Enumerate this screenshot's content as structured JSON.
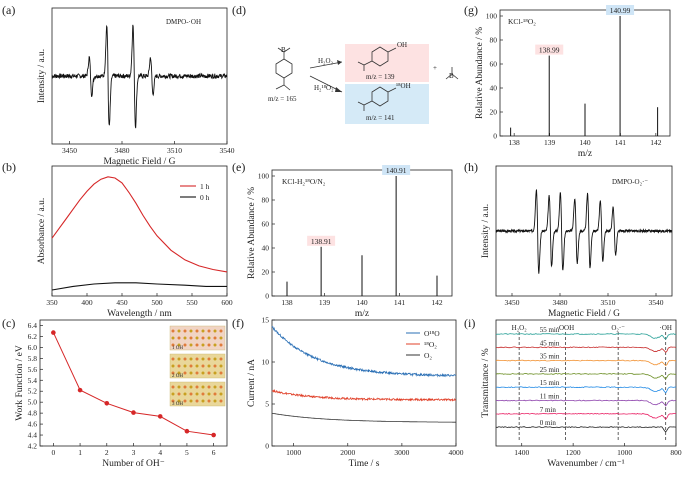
{
  "panels": {
    "a": {
      "tag": "(a)",
      "label": "DMPO-·OH"
    },
    "b": {
      "tag": "(b)"
    },
    "c": {
      "tag": "(c)"
    },
    "d": {
      "tag": "(d)"
    },
    "e": {
      "tag": "(e)",
      "label": "KCl-H₂¹⁸O/N₂"
    },
    "f": {
      "tag": "(f)"
    },
    "g": {
      "tag": "(g)",
      "label": "KCl-¹⁸O₂"
    },
    "h": {
      "tag": "(h)",
      "label": "DMPO-O₂·⁻"
    },
    "i": {
      "tag": "(i)"
    }
  },
  "scheme": {
    "reactant_mz": "m/z = 165",
    "reagent_top": "H₂O₂",
    "product_top_mz": "m/z = 139",
    "reagent_bottom": "H₂¹⁸O₂",
    "product_bottom_mz": "m/z = 141",
    "oh_label": "OH",
    "oh18_label": "¹⁸OH",
    "boron_label": "B",
    "plus_sign": "+"
  },
  "chart_data": [
    {
      "id": "a",
      "type": "line",
      "xlabel": "Magnetic Field / G",
      "ylabel": "Intensity / a.u.",
      "xlim": [
        3440,
        3540
      ],
      "xticks": [
        3450,
        3480,
        3510,
        3540
      ],
      "series": [
        {
          "name": "DMPO-·OH",
          "lines": [
            {
              "x": 3462,
              "a": 0.35,
              "w": 1.0
            },
            {
              "x": 3472,
              "a": 0.95,
              "w": 1.0
            },
            {
              "x": 3487,
              "a": 0.95,
              "w": 1.0
            },
            {
              "x": 3497,
              "a": 0.35,
              "w": 1.0
            }
          ]
        }
      ]
    },
    {
      "id": "b",
      "type": "line",
      "xlabel": "Wavelength / nm",
      "ylabel": "Absorbance / a.u.",
      "xlim": [
        350,
        600
      ],
      "xticks": [
        350,
        400,
        450,
        500,
        550,
        600
      ],
      "legend": "top-right",
      "series": [
        {
          "name": "1 h",
          "color": "#d62728",
          "x": [
            350,
            360,
            370,
            380,
            390,
            400,
            410,
            420,
            430,
            440,
            450,
            460,
            470,
            480,
            490,
            500,
            520,
            540,
            560,
            580,
            600
          ],
          "y": [
            0.48,
            0.56,
            0.64,
            0.72,
            0.8,
            0.87,
            0.93,
            0.97,
            0.99,
            0.98,
            0.94,
            0.86,
            0.77,
            0.67,
            0.58,
            0.5,
            0.38,
            0.3,
            0.25,
            0.22,
            0.2
          ]
        },
        {
          "name": "0 h",
          "color": "#111111",
          "x": [
            350,
            380,
            410,
            440,
            470,
            500,
            540,
            570,
            600
          ],
          "y": [
            0.05,
            0.08,
            0.1,
            0.11,
            0.11,
            0.1,
            0.09,
            0.08,
            0.08
          ]
        }
      ]
    },
    {
      "id": "c",
      "type": "line",
      "xlabel": "Number of OH⁻",
      "ylabel": "Work Function / eV",
      "xlim": [
        -0.5,
        6.5
      ],
      "ylim": [
        4.2,
        6.5
      ],
      "xticks": [
        0,
        1,
        2,
        3,
        4,
        5,
        6
      ],
      "yticks": [
        4.2,
        4.4,
        4.6,
        4.8,
        5.0,
        5.2,
        5.4,
        5.6,
        5.8,
        6.0,
        6.2,
        6.4
      ],
      "inset_labels": [
        "1 OH",
        "2 OH",
        "3 OH"
      ],
      "series": [
        {
          "name": "",
          "color": "#d62728",
          "x": [
            0,
            1,
            2,
            3,
            4,
            5,
            6
          ],
          "y": [
            6.27,
            5.22,
            4.98,
            4.81,
            4.74,
            4.47,
            4.4
          ]
        }
      ]
    },
    {
      "id": "e",
      "type": "bar",
      "xlabel": "m/z",
      "ylabel": "Relative Abundance / %",
      "xlim": [
        137.6,
        142.4
      ],
      "ylim": [
        0,
        105
      ],
      "xticks": [
        138,
        139,
        140,
        141,
        142
      ],
      "yticks": [
        0,
        20,
        40,
        60,
        80,
        100
      ],
      "x": [
        138.0,
        138.91,
        140.0,
        140.91,
        142.0
      ],
      "values": [
        12,
        41,
        34,
        100,
        17
      ],
      "labels": [
        {
          "text": "138.91",
          "x": 138.91,
          "bg": "#fde2e2"
        },
        {
          "text": "140.91",
          "x": 140.91,
          "bg": "#cfe5f6"
        }
      ]
    },
    {
      "id": "f",
      "type": "line",
      "xlabel": "Time / s",
      "ylabel": "Current / nA",
      "xlim": [
        600,
        4000
      ],
      "ylim": [
        0,
        15
      ],
      "xticks": [
        1000,
        2000,
        3000,
        4000
      ],
      "yticks": [
        0,
        5,
        10,
        15
      ],
      "legend": "top-right",
      "series": [
        {
          "name": "O¹⁸O",
          "color": "#2a6fb5",
          "start": 14.2,
          "end": 8.3,
          "tau": 800,
          "noise": 0.25
        },
        {
          "name": "¹⁸O₂",
          "color": "#e0412a",
          "start": 6.6,
          "end": 5.5,
          "tau": 700,
          "noise": 0.22
        },
        {
          "name": "O₂",
          "color": "#333333",
          "start": 3.9,
          "end": 2.8,
          "tau": 1000,
          "noise": 0.0
        }
      ]
    },
    {
      "id": "g",
      "type": "bar",
      "xlabel": "m/z",
      "ylabel": "Relative Abundance / %",
      "xlim": [
        137.6,
        142.4
      ],
      "ylim": [
        0,
        105
      ],
      "xticks": [
        138,
        139,
        140,
        141,
        142
      ],
      "yticks": [
        0,
        20,
        40,
        60,
        80,
        100
      ],
      "x": [
        137.9,
        138.99,
        140.0,
        140.99,
        142.05
      ],
      "values": [
        7,
        67,
        27,
        100,
        24
      ],
      "labels": [
        {
          "text": "138.99",
          "x": 138.99,
          "bg": "#fde2e2"
        },
        {
          "text": "140.99",
          "x": 140.99,
          "bg": "#cfe5f6"
        }
      ]
    },
    {
      "id": "h",
      "type": "line",
      "xlabel": "Magnetic Field / G",
      "ylabel": "Intensity / a.u.",
      "xlim": [
        3440,
        3550
      ],
      "xticks": [
        3450,
        3480,
        3510,
        3540
      ],
      "series": [
        {
          "name": "DMPO-O₂·⁻",
          "lines": [
            {
              "x": 3466,
              "a": 0.95,
              "w": 1.1
            },
            {
              "x": 3474,
              "a": 0.8,
              "w": 1.1
            },
            {
              "x": 3481,
              "a": 0.9,
              "w": 1.1
            },
            {
              "x": 3490,
              "a": 0.75,
              "w": 1.1
            },
            {
              "x": 3498,
              "a": 0.85,
              "w": 1.1
            },
            {
              "x": 3506,
              "a": 0.7,
              "w": 1.1
            },
            {
              "x": 3514,
              "a": 0.55,
              "w": 1.1
            }
          ]
        }
      ]
    },
    {
      "id": "i",
      "type": "line",
      "xlabel": "Wavenumber / cm⁻¹",
      "ylabel": "Transmittance / %",
      "xlim": [
        1500,
        800
      ],
      "xticks": [
        1400,
        1200,
        1000,
        800
      ],
      "markers": [
        {
          "label": "H₂O₂",
          "x": 1410
        },
        {
          "label": "·OOH",
          "x": 1230
        },
        {
          "label": "O₂·⁻",
          "x": 1025
        },
        {
          "label": "·OH",
          "x": 840
        }
      ],
      "series": [
        {
          "name": "55 min",
          "color": "#2aa198"
        },
        {
          "name": "45 min",
          "color": "#c62828"
        },
        {
          "name": "35 min",
          "color": "#f29233"
        },
        {
          "name": "25 min",
          "color": "#6b8e23"
        },
        {
          "name": "15 min",
          "color": "#1e88e5"
        },
        {
          "name": "11 min",
          "color": "#8e44ad"
        },
        {
          "name": "7 min",
          "color": "#e91e63"
        },
        {
          "name": "0 min",
          "color": "#222222"
        }
      ]
    }
  ]
}
